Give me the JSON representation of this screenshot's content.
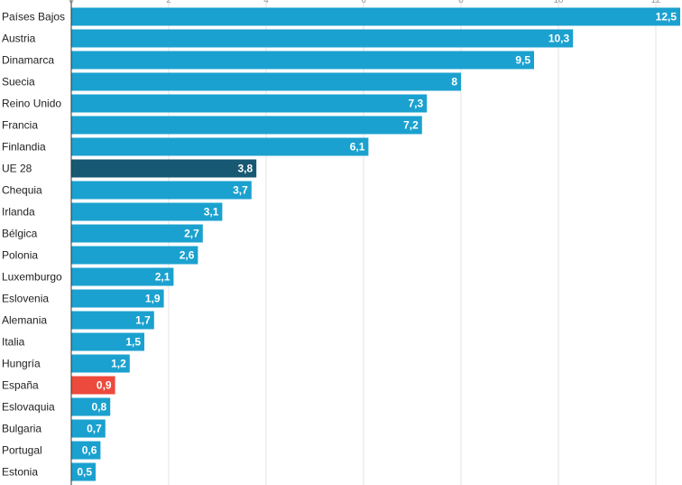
{
  "chart_data": {
    "type": "bar",
    "orientation": "horizontal",
    "categories": [
      "Países Bajos",
      "Austria",
      "Dinamarca",
      "Suecia",
      "Reino Unido",
      "Francia",
      "Finlandia",
      "UE 28",
      "Chequia",
      "Irlanda",
      "Bélgica",
      "Polonia",
      "Luxemburgo",
      "Eslovenia",
      "Alemania",
      "Italia",
      "Hungría",
      "España",
      "Eslovaquia",
      "Bulgaria",
      "Portugal",
      "Estonia"
    ],
    "values": [
      12.5,
      10.3,
      9.5,
      8,
      7.3,
      7.2,
      6.1,
      3.8,
      3.7,
      3.1,
      2.7,
      2.6,
      2.1,
      1.9,
      1.7,
      1.5,
      1.2,
      0.9,
      0.8,
      0.7,
      0.6,
      0.5
    ],
    "value_labels": [
      "12,5",
      "10,3",
      "9,5",
      "8",
      "7,3",
      "7,2",
      "6,1",
      "3,8",
      "3,7",
      "3,1",
      "2,7",
      "2,6",
      "2,1",
      "1,9",
      "1,7",
      "1,5",
      "1,2",
      "0,9",
      "0,8",
      "0,7",
      "0,6",
      "0,5"
    ],
    "xlim": [
      0,
      12.5
    ],
    "xticks": [
      0,
      2,
      4,
      6,
      8,
      10,
      12
    ],
    "grid": true,
    "title": "",
    "xlabel": "",
    "ylabel": "",
    "colors": {
      "default": "#1ba1cf",
      "highlight_eu": "#175872",
      "highlight_spain": "#ec4a3c",
      "grid": "#e3e3e3",
      "axis": "#333333"
    },
    "highlights": {
      "UE 28": "highlight_eu",
      "España": "highlight_spain"
    }
  }
}
